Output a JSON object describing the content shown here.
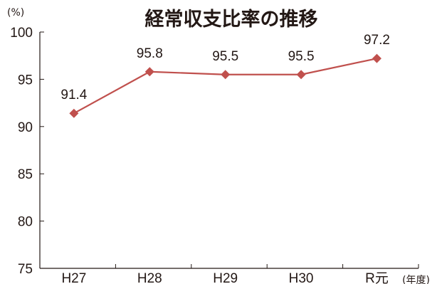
{
  "chart_data": {
    "type": "line",
    "title": "経常収支比率の推移",
    "y_unit": "(%)",
    "x_unit": "(年度)",
    "categories": [
      "H27",
      "H28",
      "H29",
      "H30",
      "R元"
    ],
    "series": [
      {
        "values": [
          91.4,
          95.8,
          95.5,
          95.5,
          97.2
        ]
      }
    ],
    "data_labels": [
      "91.4",
      "95.8",
      "95.5",
      "95.5",
      "97.2"
    ],
    "ylim": [
      75,
      100
    ],
    "yticks": [
      75,
      80,
      85,
      90,
      95,
      100
    ],
    "grid": false,
    "colors": {
      "series": "#c0504d",
      "axis": "#231815"
    }
  }
}
